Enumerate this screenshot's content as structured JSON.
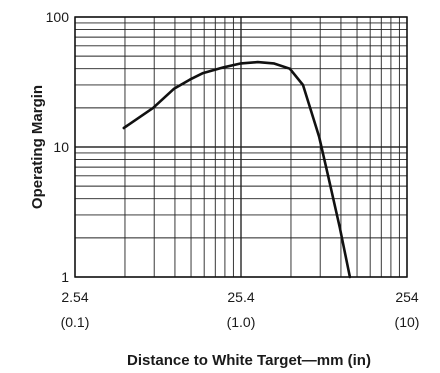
{
  "chart_data": {
    "type": "line",
    "title": "",
    "xlabel": "Distance to White Target—mm (in)",
    "ylabel": "Operating Margin",
    "x_scale": "log",
    "y_scale": "log",
    "xlim": [
      2.54,
      254
    ],
    "ylim": [
      1,
      100
    ],
    "grid": true,
    "legend": "none",
    "x_ticks": [
      {
        "value": 2.54,
        "label": "2.54",
        "sublabel": "(0.1)"
      },
      {
        "value": 25.4,
        "label": "25.4",
        "sublabel": "(1.0)"
      },
      {
        "value": 254,
        "label": "254",
        "sublabel": "(10)"
      }
    ],
    "y_ticks": [
      {
        "value": 1,
        "label": "1"
      },
      {
        "value": 10,
        "label": "10"
      },
      {
        "value": 100,
        "label": "100"
      }
    ],
    "series": [
      {
        "x": [
          5.0,
          7.5,
          10.0,
          12.5,
          15.0,
          20.0,
          25.4,
          32.0,
          40.0,
          50.0,
          60.0,
          75.0,
          85.0,
          100.0,
          115.0
        ],
        "y": [
          14,
          20,
          28,
          33,
          37,
          41,
          44,
          45,
          44,
          40,
          30,
          12,
          6,
          2.4,
          1.0
        ]
      }
    ],
    "colors": {
      "line": "#111111",
      "grid": "#222222",
      "background": "#ffffff"
    }
  }
}
